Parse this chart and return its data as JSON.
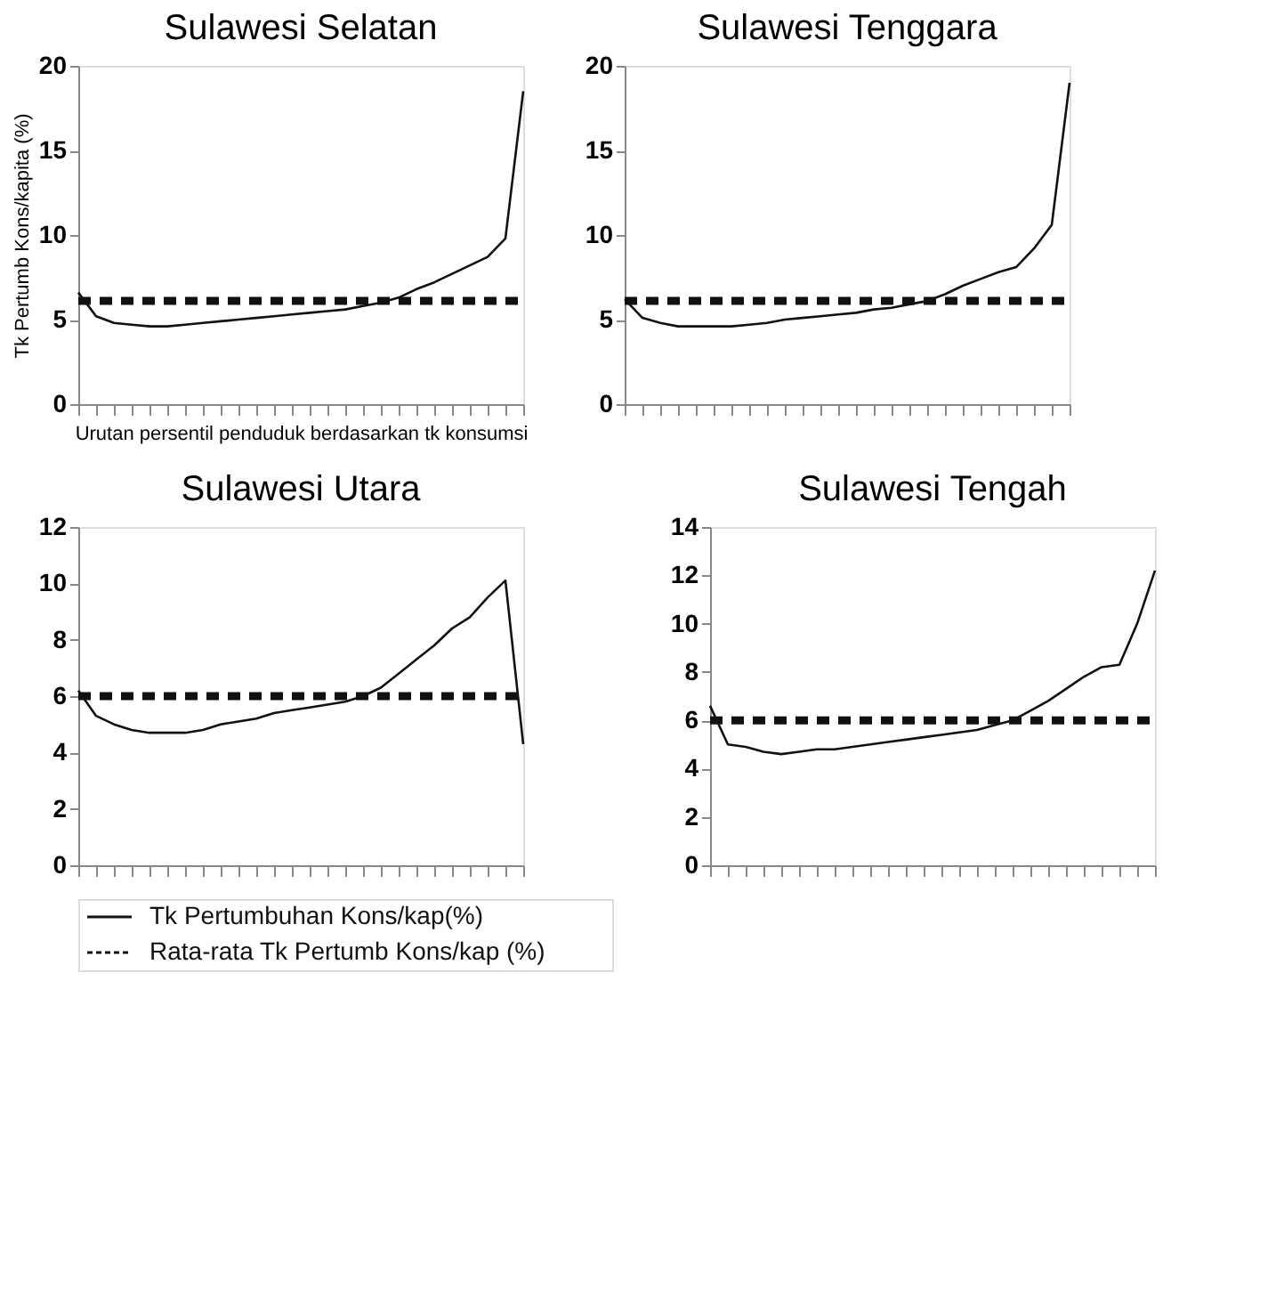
{
  "chart_data": [
    {
      "type": "line",
      "title": "Sulawesi Selatan",
      "xlabel": "Urutan persentil penduduk berdasarkan tk konsumsi",
      "ylabel": "Tk Pertumb Kons/kapita (%)",
      "categories": [
        null,
        null,
        null,
        null,
        null,
        null,
        null,
        null,
        null,
        null,
        null,
        null,
        null,
        null,
        null,
        null,
        null,
        null,
        null,
        null,
        null,
        null,
        null,
        null,
        null,
        null
      ],
      "ylim": [
        0,
        20
      ],
      "yticks": [
        0,
        5,
        10,
        15,
        20
      ],
      "tick_labels": "y",
      "legend": false,
      "series": [
        {
          "color": "#111111",
          "line_style": "solid",
          "values": [
            6.6,
            5.2,
            4.8,
            4.7,
            4.6,
            4.6,
            4.7,
            4.8,
            4.9,
            5.0,
            5.1,
            5.2,
            5.3,
            5.4,
            5.5,
            5.6,
            5.8,
            6.0,
            6.3,
            6.8,
            7.2,
            7.7,
            8.2,
            8.7,
            9.8,
            18.5
          ]
        },
        {
          "color": "#111111",
          "line_style": "dashed",
          "values": [
            6.1,
            6.1,
            6.1,
            6.1,
            6.1,
            6.1,
            6.1,
            6.1,
            6.1,
            6.1,
            6.1,
            6.1,
            6.1,
            6.1,
            6.1,
            6.1,
            6.1,
            6.1,
            6.1,
            6.1,
            6.1,
            6.1,
            6.1,
            6.1,
            6.1,
            6.1
          ]
        }
      ]
    },
    {
      "type": "line",
      "title": "Sulawesi Tenggara",
      "categories": [
        null,
        null,
        null,
        null,
        null,
        null,
        null,
        null,
        null,
        null,
        null,
        null,
        null,
        null,
        null,
        null,
        null,
        null,
        null,
        null,
        null,
        null,
        null,
        null,
        null,
        null
      ],
      "ylim": [
        0,
        20
      ],
      "yticks": [
        0,
        5,
        10,
        15,
        20
      ],
      "tick_labels": "y",
      "legend": false,
      "series": [
        {
          "color": "#111111",
          "line_style": "solid",
          "values": [
            6.2,
            5.1,
            4.8,
            4.6,
            4.6,
            4.6,
            4.6,
            4.7,
            4.8,
            5.0,
            5.1,
            5.2,
            5.3,
            5.4,
            5.6,
            5.7,
            5.9,
            6.1,
            6.5,
            7.0,
            7.4,
            7.8,
            8.1,
            9.2,
            10.6,
            19.0
          ]
        },
        {
          "color": "#111111",
          "line_style": "dashed",
          "values": [
            6.1,
            6.1,
            6.1,
            6.1,
            6.1,
            6.1,
            6.1,
            6.1,
            6.1,
            6.1,
            6.1,
            6.1,
            6.1,
            6.1,
            6.1,
            6.1,
            6.1,
            6.1,
            6.1,
            6.1,
            6.1,
            6.1,
            6.1,
            6.1,
            6.1,
            6.1
          ]
        }
      ]
    },
    {
      "type": "line",
      "title": "Sulawesi Utara",
      "categories": [
        null,
        null,
        null,
        null,
        null,
        null,
        null,
        null,
        null,
        null,
        null,
        null,
        null,
        null,
        null,
        null,
        null,
        null,
        null,
        null,
        null,
        null,
        null,
        null,
        null,
        null
      ],
      "ylim": [
        0,
        12
      ],
      "yticks": [
        0,
        2,
        4,
        6,
        8,
        10,
        12
      ],
      "tick_labels": "y",
      "legend": "bottom",
      "series": [
        {
          "name": "Tk Pertumbuhan Kons/kap(%)",
          "color": "#111111",
          "line_style": "solid",
          "values": [
            6.2,
            5.3,
            5.0,
            4.8,
            4.7,
            4.7,
            4.7,
            4.8,
            5.0,
            5.1,
            5.2,
            5.4,
            5.5,
            5.6,
            5.7,
            5.8,
            6.0,
            6.3,
            6.8,
            7.3,
            7.8,
            8.4,
            8.8,
            9.5,
            10.1,
            4.3
          ]
        },
        {
          "name": "Rata-rata Tk Pertumb Kons/kap (%)",
          "color": "#111111",
          "line_style": "dashed",
          "values": [
            6.0,
            6.0,
            6.0,
            6.0,
            6.0,
            6.0,
            6.0,
            6.0,
            6.0,
            6.0,
            6.0,
            6.0,
            6.0,
            6.0,
            6.0,
            6.0,
            6.0,
            6.0,
            6.0,
            6.0,
            6.0,
            6.0,
            6.0,
            6.0,
            6.0,
            6.0
          ]
        }
      ]
    },
    {
      "type": "line",
      "title": "Sulawesi Tengah",
      "categories": [
        null,
        null,
        null,
        null,
        null,
        null,
        null,
        null,
        null,
        null,
        null,
        null,
        null,
        null,
        null,
        null,
        null,
        null,
        null,
        null,
        null,
        null,
        null,
        null,
        null,
        null
      ],
      "ylim": [
        0,
        14
      ],
      "yticks": [
        0,
        2,
        4,
        6,
        8,
        10,
        12,
        14
      ],
      "tick_labels": "y",
      "legend": false,
      "series": [
        {
          "color": "#111111",
          "line_style": "solid",
          "values": [
            6.6,
            5.0,
            4.9,
            4.7,
            4.6,
            4.7,
            4.8,
            4.8,
            4.9,
            5.0,
            5.1,
            5.2,
            5.3,
            5.4,
            5.5,
            5.6,
            5.8,
            6.0,
            6.4,
            6.8,
            7.3,
            7.8,
            8.2,
            8.3,
            10.0,
            12.2
          ]
        },
        {
          "color": "#111111",
          "line_style": "dashed",
          "values": [
            6.0,
            6.0,
            6.0,
            6.0,
            6.0,
            6.0,
            6.0,
            6.0,
            6.0,
            6.0,
            6.0,
            6.0,
            6.0,
            6.0,
            6.0,
            6.0,
            6.0,
            6.0,
            6.0,
            6.0,
            6.0,
            6.0,
            6.0,
            6.0,
            6.0,
            6.0
          ]
        }
      ]
    }
  ]
}
